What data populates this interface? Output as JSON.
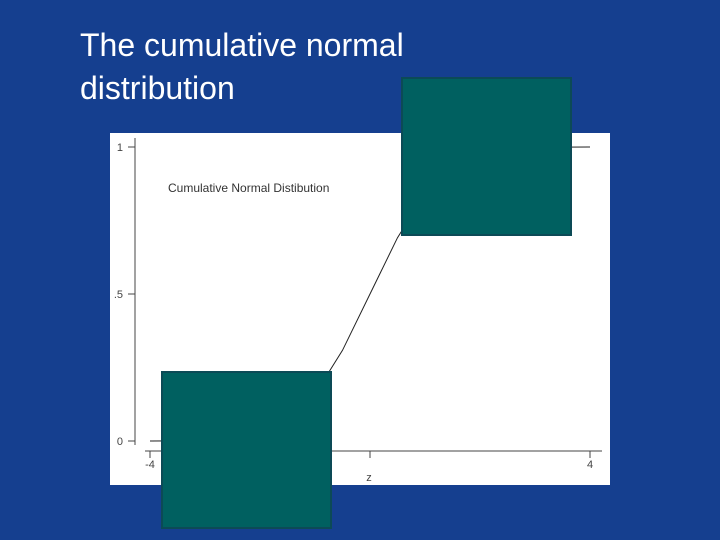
{
  "slide": {
    "title_line1": "The cumulative normal",
    "title_line2": "distribution"
  },
  "colors": {
    "background": "#153f8f",
    "overlay": "#006060"
  },
  "chart_data": {
    "type": "line",
    "title": "Cumulative Normal Distibution",
    "xlabel": "z",
    "ylabel": "",
    "xlim": [
      -4,
      4
    ],
    "ylim": [
      0,
      1
    ],
    "x_ticks": [
      -4,
      0,
      4
    ],
    "x_tick_labels": [
      "-4",
      "",
      "4"
    ],
    "y_ticks": [
      0,
      0.5,
      1
    ],
    "y_tick_labels": [
      "0",
      ".5",
      "1"
    ],
    "grid": false,
    "series": [
      {
        "x": [
          -4,
          -3.5,
          -3,
          -2.5,
          -2,
          -1.5,
          -1,
          -0.5,
          0,
          0.5,
          1,
          1.5,
          2,
          2.5,
          3,
          3.5,
          4
        ],
        "values": [
          3e-05,
          0.0002,
          0.0013,
          0.0062,
          0.0228,
          0.0668,
          0.1587,
          0.3085,
          0.5,
          0.6915,
          0.8413,
          0.9332,
          0.9772,
          0.9938,
          0.9987,
          0.9998,
          0.99997
        ]
      }
    ]
  }
}
